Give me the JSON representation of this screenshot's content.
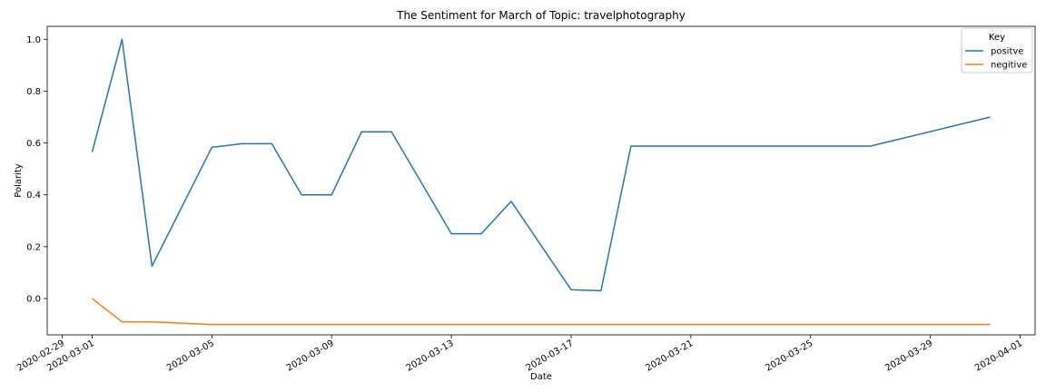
{
  "chart_data": {
    "type": "line",
    "title": "The Sentiment for March of Topic: travelphotography",
    "xlabel": "Date",
    "ylabel": "Polarity",
    "x_ticks": [
      "2020-02-29",
      "2020-03-01",
      "2020-03-05",
      "2020-03-09",
      "2020-03-13",
      "2020-03-17",
      "2020-03-21",
      "2020-03-25",
      "2020-03-29",
      "2020-04-01"
    ],
    "y_ticks": [
      "0.0",
      "0.2",
      "0.4",
      "0.6",
      "0.8",
      "1.0"
    ],
    "xlim": [
      "2020-02-28T12:00",
      "2020-04-01T12:00"
    ],
    "ylim": [
      -0.14,
      1.05
    ],
    "grid": false,
    "legend": {
      "title": "Key",
      "placement": "upper-right"
    },
    "series": [
      {
        "name": "positve",
        "color": "#1f77b4",
        "points": [
          [
            "2020-03-01",
            0.565
          ],
          [
            "2020-03-02",
            1.0
          ],
          [
            "2020-03-03",
            0.125
          ],
          [
            "2020-03-05",
            0.583
          ],
          [
            "2020-03-06",
            0.597
          ],
          [
            "2020-03-07",
            0.597
          ],
          [
            "2020-03-08",
            0.4
          ],
          [
            "2020-03-09",
            0.4
          ],
          [
            "2020-03-10",
            0.643
          ],
          [
            "2020-03-11",
            0.643
          ],
          [
            "2020-03-13",
            0.25
          ],
          [
            "2020-03-14",
            0.25
          ],
          [
            "2020-03-15",
            0.375
          ],
          [
            "2020-03-17",
            0.034
          ],
          [
            "2020-03-18",
            0.03
          ],
          [
            "2020-03-19",
            0.588
          ],
          [
            "2020-03-27",
            0.588
          ],
          [
            "2020-03-31",
            0.7
          ]
        ]
      },
      {
        "name": "negitive",
        "color": "#ff7f0e",
        "points": [
          [
            "2020-03-01",
            0.0
          ],
          [
            "2020-03-02",
            -0.09
          ],
          [
            "2020-03-03",
            -0.09
          ],
          [
            "2020-03-05",
            -0.1
          ],
          [
            "2020-03-31",
            -0.1
          ]
        ]
      }
    ]
  }
}
